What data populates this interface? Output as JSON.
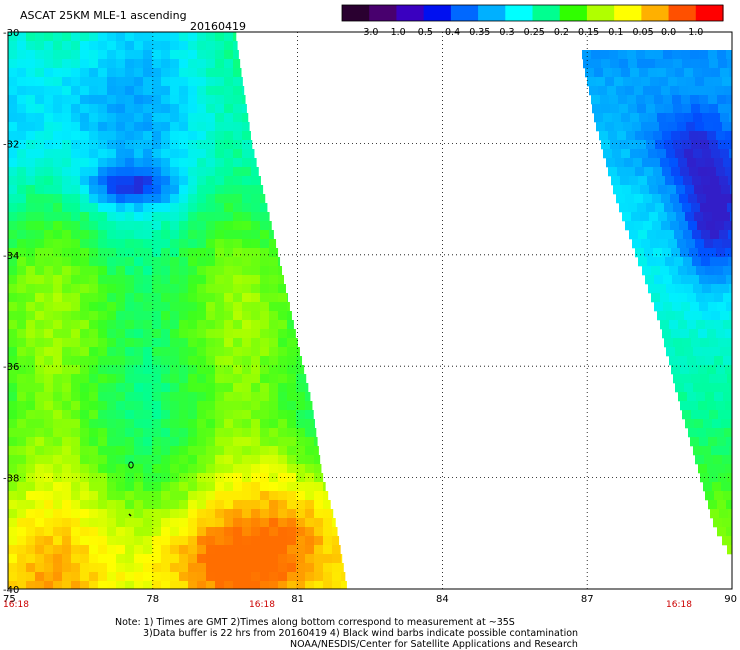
{
  "header": {
    "title": "ASCAT 25KM MLE-1 ascending",
    "date": "20160419"
  },
  "colorbar": {
    "ticks": [
      "-3.0",
      "-1.0",
      "-0.5",
      "-0.4",
      "-0.35",
      "-0.3",
      "-0.25",
      "-0.2",
      "-0.15",
      "-0.1",
      "-0.05",
      "0.0",
      "1.0"
    ],
    "colors": [
      "#2a0030",
      "#48006e",
      "#3a00c0",
      "#0010f0",
      "#0068ff",
      "#00b0ff",
      "#00ffff",
      "#00ff90",
      "#30ff00",
      "#b0ff00",
      "#ffff00",
      "#ffb000",
      "#ff5000",
      "#ff0000"
    ]
  },
  "axes": {
    "x_ticks": [
      "75",
      "78",
      "81",
      "84",
      "87",
      "90"
    ],
    "y_ticks": [
      "-30",
      "-32",
      "-34",
      "-36",
      "-38",
      "-40"
    ],
    "x_range": [
      75,
      90
    ],
    "y_range": [
      -30,
      -40
    ]
  },
  "swath_times": {
    "left_1": "16:18",
    "left_2": "16:18",
    "right": "16:18"
  },
  "notes": {
    "line1": "Note: 1) Times are GMT 2)Times along bottom correspond to measurement at ~35S",
    "line2": "3)Data buffer is 22 hrs from 20160419 4) Black wind barbs indicate possible contamination",
    "line3": "NOAA/NESDIS/Center for Satellite Applications and Research"
  }
}
